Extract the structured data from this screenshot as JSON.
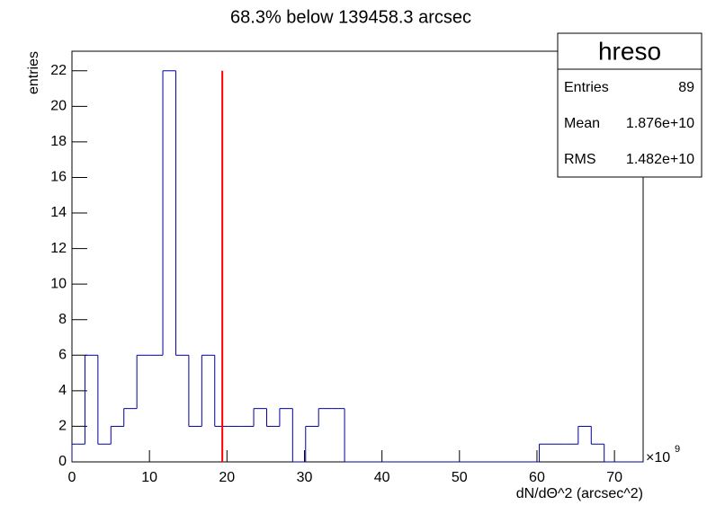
{
  "chart_data": {
    "type": "histogram",
    "title": "68.3% below 139458.3 arcsec",
    "x_label": "dN/dΘ^2 (arcsec^2)",
    "y_label": "entries",
    "x_multiplier": {
      "base": "×10",
      "exp": "9"
    },
    "bins": [
      0,
      1.675,
      3.35,
      5.025,
      6.7,
      8.375,
      10.05,
      11.725,
      13.4,
      15.075,
      16.75,
      18.425,
      20.1,
      21.775,
      23.45,
      25.125,
      26.8,
      28.475,
      30.15,
      31.825,
      33.5,
      35.175,
      36.85,
      38.525,
      40.2,
      41.875,
      43.55,
      45.225,
      46.9,
      48.575,
      50.25,
      51.925,
      53.6,
      55.275,
      56.95,
      58.625,
      60.3,
      61.975,
      63.65,
      65.325,
      67,
      68.675,
      70.35,
      72.025,
      73.7
    ],
    "values": [
      1,
      6,
      1,
      2,
      3,
      6,
      6,
      22,
      6,
      2,
      6,
      2,
      2,
      2,
      3,
      2,
      3,
      0,
      2,
      3,
      3,
      0,
      0,
      0,
      0,
      0,
      0,
      0,
      0,
      0,
      0,
      0,
      0,
      0,
      0,
      0,
      1,
      1,
      1,
      2,
      1,
      0,
      0,
      0
    ],
    "color": "#000099",
    "marker": {
      "x": 19.4,
      "y": 22,
      "color": "#ff0000"
    },
    "xlim": [
      0,
      73.7
    ],
    "ylim": [
      0,
      23.1
    ],
    "xticks": [
      0,
      10,
      20,
      30,
      40,
      50,
      60,
      70
    ],
    "yticks": [
      0,
      2,
      4,
      6,
      8,
      10,
      12,
      14,
      16,
      18,
      20,
      22
    ],
    "stats": {
      "title": "hreso",
      "rows": [
        [
          "Entries",
          "89"
        ],
        [
          "Mean",
          "1.876e+10"
        ],
        [
          "RMS",
          "1.482e+10"
        ]
      ]
    }
  }
}
